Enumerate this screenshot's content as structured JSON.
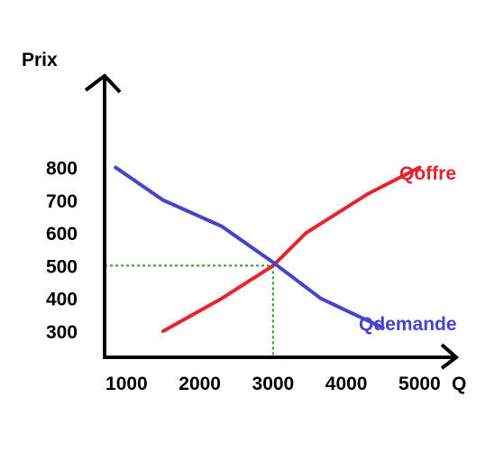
{
  "chart_data": {
    "type": "line",
    "title": "",
    "xlabel": "Q",
    "ylabel": "Prix",
    "x_ticks": [
      1000,
      2000,
      3000,
      4000,
      5000
    ],
    "y_ticks": [
      300,
      400,
      500,
      600,
      700,
      800
    ],
    "xlim": [
      700,
      5500
    ],
    "ylim": [
      220,
      1080
    ],
    "grid": false,
    "series": [
      {
        "name": "Qoffre",
        "color": "#e8232d",
        "points": [
          [
            1500,
            300
          ],
          [
            2300,
            400
          ],
          [
            3000,
            500
          ],
          [
            3450,
            600
          ],
          [
            4300,
            720
          ],
          [
            5000,
            800
          ]
        ]
      },
      {
        "name": "Qdemande",
        "color": "#4444cc",
        "points": [
          [
            850,
            800
          ],
          [
            1500,
            700
          ],
          [
            2300,
            620
          ],
          [
            3000,
            510
          ],
          [
            3650,
            400
          ],
          [
            4500,
            310
          ]
        ]
      }
    ],
    "equilibrium": {
      "x": 3000,
      "y": 500,
      "line_color": "#2ca02c"
    },
    "axis_color": "#000000"
  }
}
